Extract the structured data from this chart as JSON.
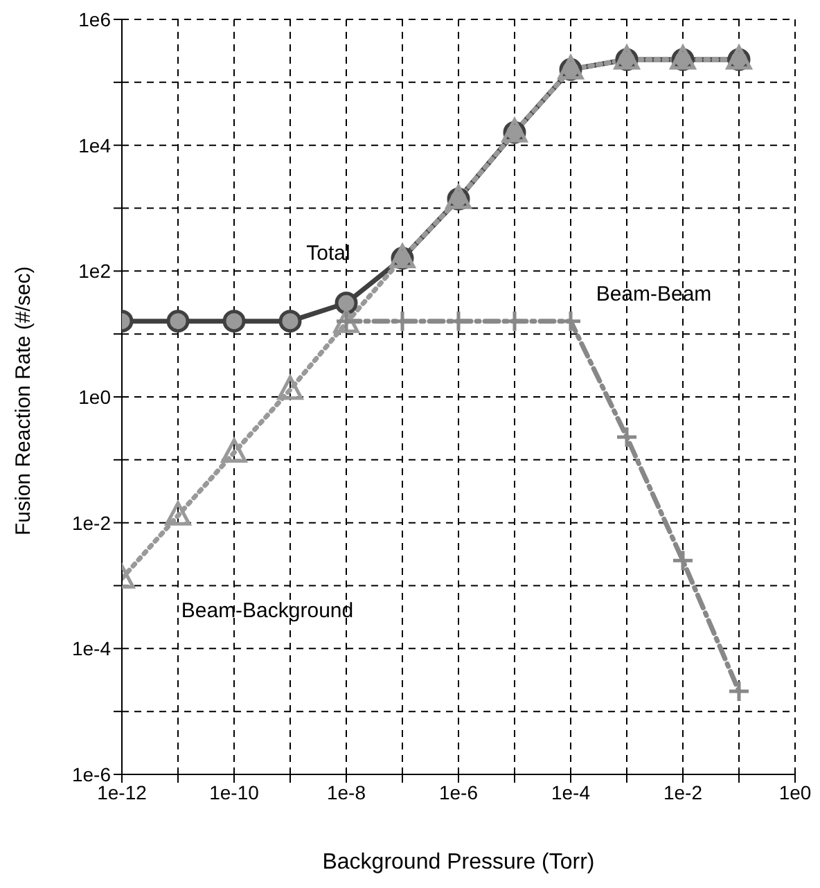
{
  "chart_data": {
    "type": "line",
    "xlabel": "Background Pressure (Torr)",
    "ylabel": "Fusion Reaction Rate (#/sec)",
    "log": "xy",
    "grid": true,
    "legend": false,
    "xlim": [
      1e-12,
      1
    ],
    "ylim": [
      1e-06,
      1000000.0
    ],
    "xticks": [
      {
        "value": 1e-12,
        "label": "1e-12"
      },
      {
        "value": 1e-11,
        "label": null
      },
      {
        "value": 1e-10,
        "label": "1e-10"
      },
      {
        "value": 1e-09,
        "label": null
      },
      {
        "value": 1e-08,
        "label": "1e-8"
      },
      {
        "value": 1e-07,
        "label": null
      },
      {
        "value": 1e-06,
        "label": "1e-6"
      },
      {
        "value": 1e-05,
        "label": null
      },
      {
        "value": 0.0001,
        "label": "1e-4"
      },
      {
        "value": 0.001,
        "label": null
      },
      {
        "value": 0.01,
        "label": "1e-2"
      },
      {
        "value": 0.1,
        "label": null
      },
      {
        "value": 1,
        "label": "1e0"
      }
    ],
    "yticks": [
      {
        "value": 1e-06,
        "label": "1e-6"
      },
      {
        "value": 1e-05,
        "label": null
      },
      {
        "value": 0.0001,
        "label": "1e-4"
      },
      {
        "value": 0.001,
        "label": null
      },
      {
        "value": 0.01,
        "label": "1e-2"
      },
      {
        "value": 0.1,
        "label": null
      },
      {
        "value": 1,
        "label": "1e0"
      },
      {
        "value": 10,
        "label": null
      },
      {
        "value": 100,
        "label": "1e2"
      },
      {
        "value": 1000,
        "label": null
      },
      {
        "value": 10000,
        "label": "1e4"
      },
      {
        "value": 100000,
        "label": null
      },
      {
        "value": 1000000,
        "label": "1e6"
      }
    ],
    "series": [
      {
        "name": "Total",
        "color": "#404040",
        "marker": "circle",
        "line_style": "solid",
        "x": [
          1e-12,
          1e-11,
          1e-10,
          1e-09,
          1e-08,
          1e-07,
          1e-06,
          1e-05,
          0.0001,
          0.001,
          0.01,
          0.1
        ],
        "values": [
          16,
          16,
          16,
          16,
          31,
          160,
          1400,
          16000,
          160000,
          230000,
          230000,
          230000
        ]
      },
      {
        "name": "Beam-Background",
        "color": "#999999",
        "marker": "triangle",
        "line_style": "dotted",
        "x": [
          1e-12,
          1e-11,
          1e-10,
          1e-09,
          1e-08,
          1e-07,
          1e-06,
          1e-05,
          0.0001,
          0.001,
          0.01,
          0.1
        ],
        "values": [
          0.0013,
          0.013,
          0.13,
          1.3,
          15,
          160,
          1400,
          16000,
          160000,
          230000,
          230000,
          230000
        ]
      },
      {
        "name": "Beam-Beam",
        "color": "#888888",
        "marker": "cross",
        "line_style": "dashed",
        "x": [
          1e-08,
          1e-07,
          1e-06,
          1e-05,
          0.0001,
          0.001,
          0.01,
          0.1
        ],
        "values": [
          16,
          16,
          16,
          16,
          16,
          0.23,
          0.0025,
          2.1e-05
        ]
      }
    ]
  }
}
